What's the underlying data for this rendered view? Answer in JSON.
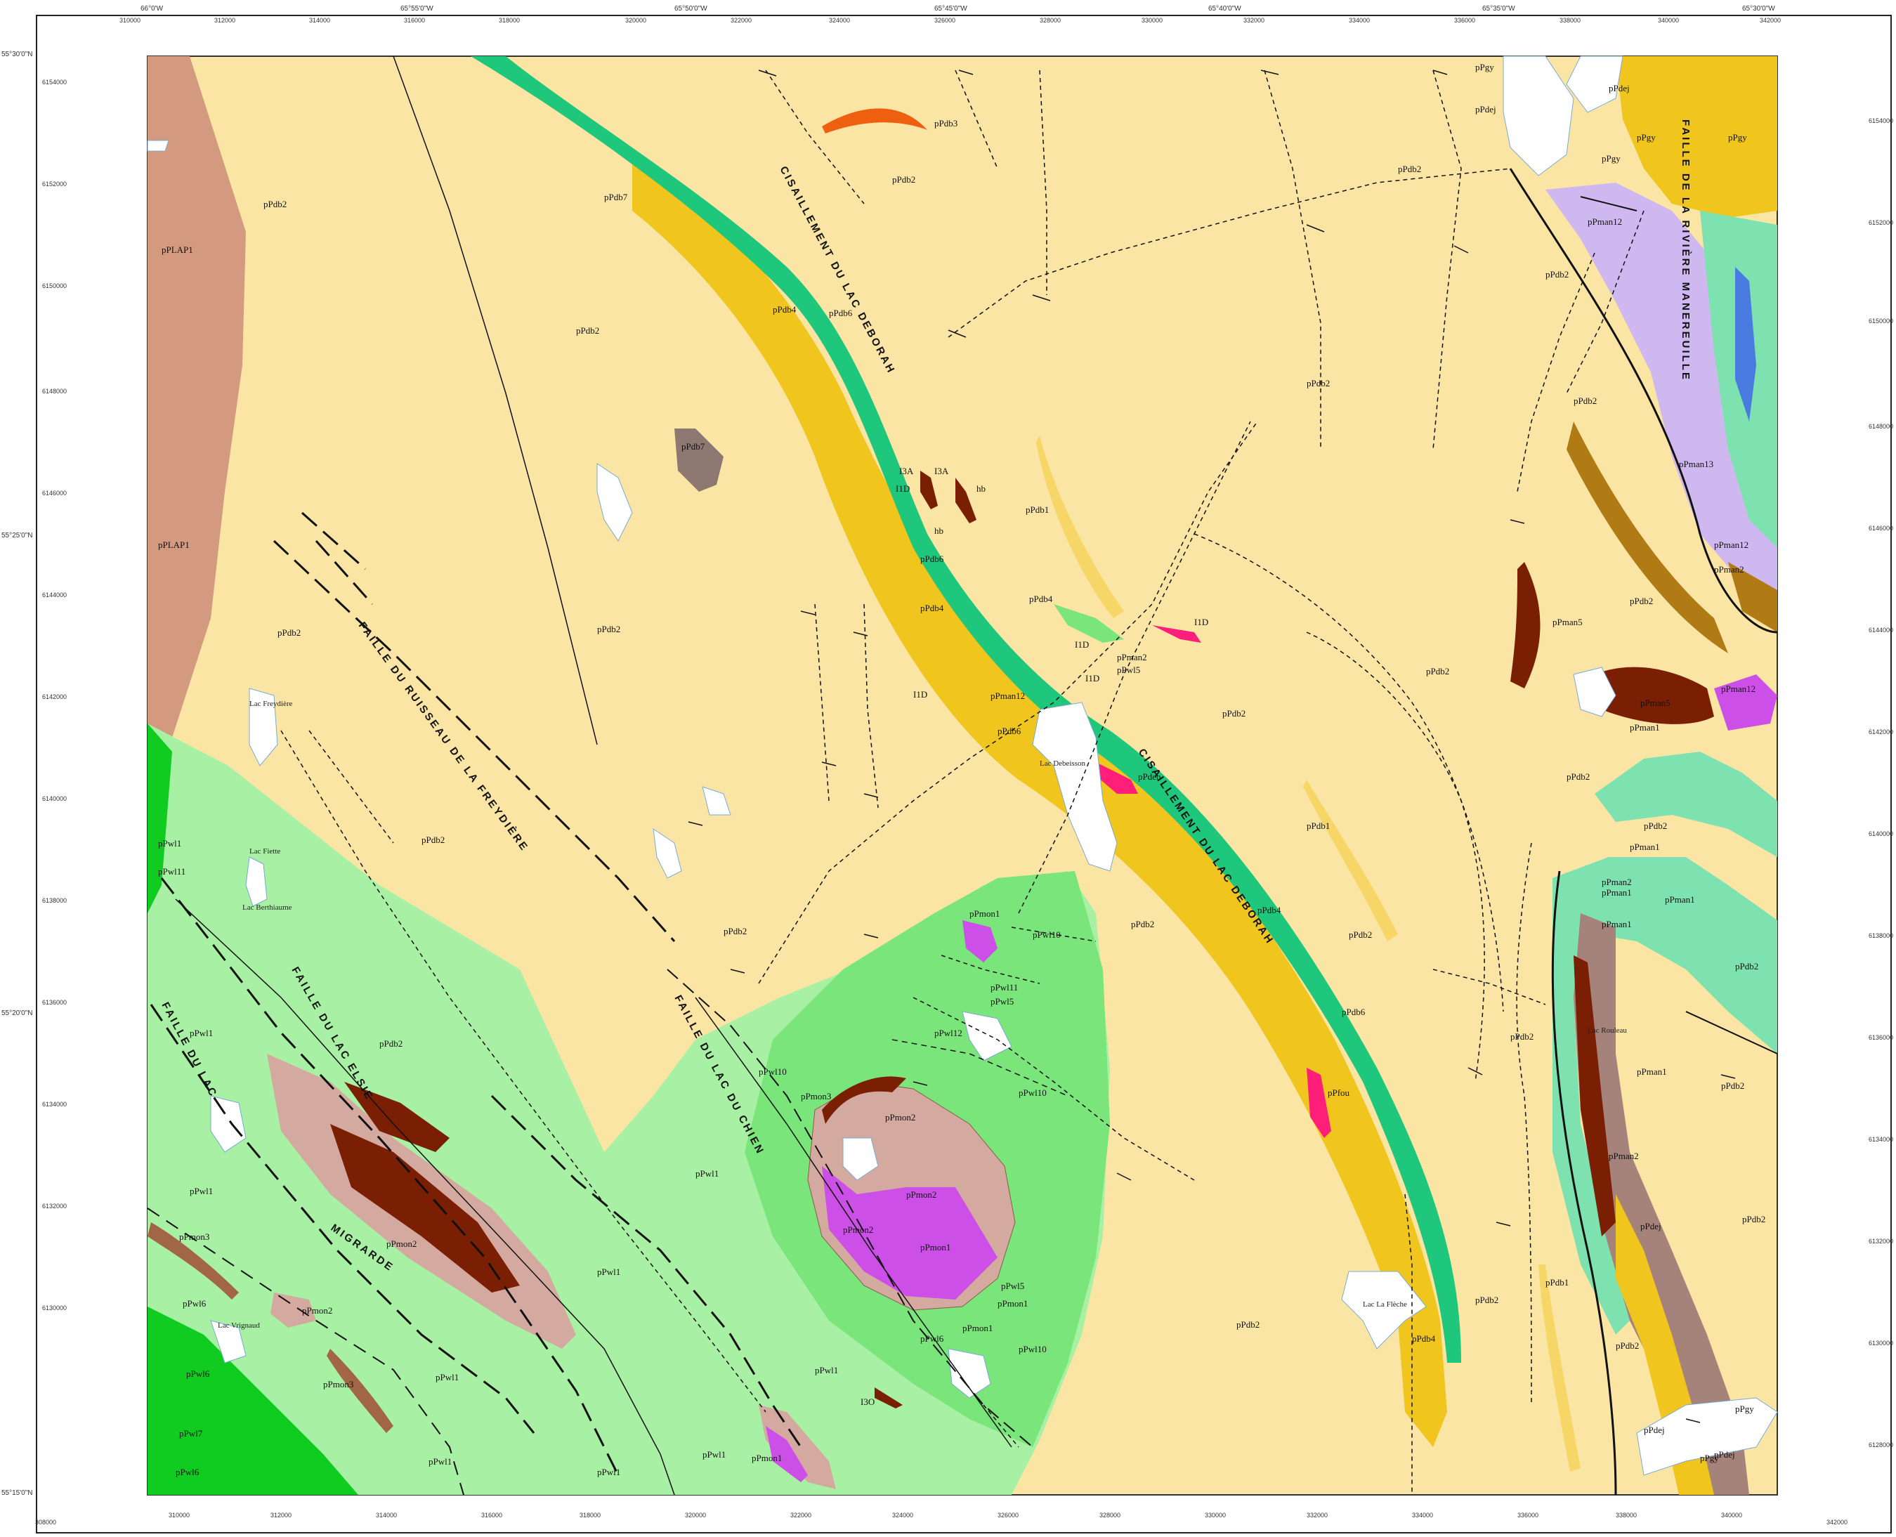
{
  "map": {
    "colors": {
      "db2": "#fae5a4",
      "db4": "#f0c61e",
      "db6_stripe": "#1fc77c",
      "lap1": "#d49a80",
      "wl1": "#a8f0a3",
      "wl10": "#79e57a",
      "wl_dark": "#10cc20",
      "mon2": "#d4aaa0",
      "mon1": "#cc4fe8",
      "mon3": "#a26545",
      "dark_brown": "#7a1e04",
      "orange": "#ee6010",
      "pink": "#ff1f7a",
      "lilac": "#cfb8f0",
      "man1": "#7de2b0",
      "brown_tan": "#b07a14",
      "gray_brown": "#8d7872",
      "lake": "#ffffff"
    },
    "top_ticks": [
      "310000",
      "312000",
      "314000",
      "316000",
      "318000",
      "320000",
      "322000",
      "324000",
      "326000",
      "328000",
      "330000",
      "332000",
      "334000",
      "336000",
      "338000",
      "340000",
      "342000"
    ],
    "bottom_ticks": [
      "308000",
      "310000",
      "312000",
      "314000",
      "316000",
      "318000",
      "320000",
      "322000",
      "324000",
      "326000",
      "328000",
      "330000",
      "332000",
      "334000",
      "336000",
      "338000",
      "340000",
      "342000"
    ],
    "right_ticks": [
      "6154000",
      "6152000",
      "6150000",
      "6148000",
      "6146000",
      "6144000",
      "6142000",
      "6140000",
      "6138000",
      "6136000",
      "6134000",
      "6132000",
      "6130000",
      "6128000"
    ],
    "left_ticks": [
      "6154000",
      "6152000",
      "6150000",
      "6148000",
      "6146000",
      "6144000",
      "6142000",
      "6140000",
      "6138000",
      "6136000",
      "6134000",
      "6132000",
      "6130000"
    ],
    "lon_labels": [
      "66°0'W",
      "65°55'0\"W",
      "65°50'0\"W",
      "65°45'0\"W",
      "65°40'0\"W",
      "65°35'0\"W",
      "65°30'0\"W"
    ],
    "lat_labels": [
      "55°30'0\"N",
      "55°25'0\"N",
      "55°20'0\"N",
      "55°15'0\"N"
    ],
    "units": {
      "db2": "pPdb2",
      "db3": "pPdb3",
      "db4": "pPdb4",
      "db5": "pPdb5",
      "db6": "pPdb6",
      "db7": "pPdb7",
      "db1": "pPdb1",
      "lap1": "pPLAP1",
      "wl1": "pPwl1",
      "wl10": "pPwl10",
      "wl11": "pPwl11",
      "wl12": "pPwl12",
      "wl5": "pPwl5",
      "wl6": "pPwl6",
      "wl7": "pPwl7",
      "mon1": "pPmon1",
      "mon2": "pPmon2",
      "mon3": "pPmon3",
      "man1": "pPman1",
      "man2": "pPman2",
      "man5": "pPman5",
      "man12": "pPman12",
      "man13": "pPman13",
      "dej": "pPdej",
      "deb": "pPdeb",
      "fou": "pPfou",
      "gy": "pPgy",
      "hb": "hb",
      "i3a": "I3A",
      "i1d": "I1D",
      "i3o": "I3O"
    },
    "faults": {
      "deborah": "CISAILLEMENT DU LAC DEBORAH",
      "freydiere": "FAILLE DU RUISSEAU DE LA FREYDIÈRE",
      "elsie": "FAILLE DU LAC ELSIE",
      "chien": "FAILLE DU LAC DU CHIEN",
      "migrarde": "MIGRARDE",
      "faille_du_lac": "FAILLE DU LAC",
      "manereuille": "FAILLE DE LA RIVIÈRE MANEREUILLE"
    },
    "lakes": {
      "debeisson": "Lac Debeisson",
      "freydiere": "Lac Freydière",
      "fiette": "Lac Fiette",
      "bethiaume": "Lac Berthiaume",
      "rouleau": "Lac Rouleau",
      "vrignaud": "Lac Vrignaud",
      "lafleche": "Lac La Flèche"
    }
  }
}
